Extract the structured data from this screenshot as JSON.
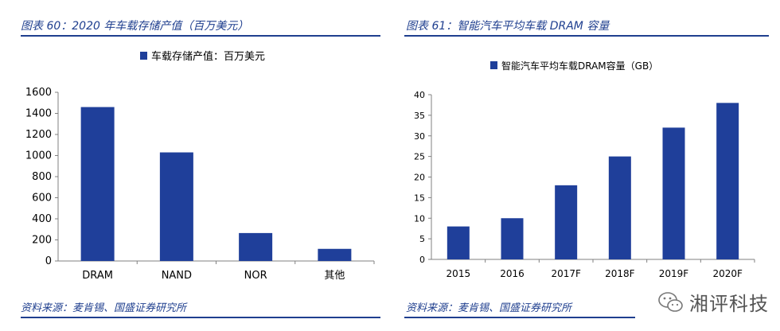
{
  "colors": {
    "bar": "#1f3f9a",
    "title": "#1f3f8f"
  },
  "left": {
    "title": "图表 60：2020 年车载存储产值（百万美元）",
    "source": "资料来源：麦肯锡、国盛证券研究所"
  },
  "right": {
    "title": "图表 61：智能汽车平均车载 DRAM 容量",
    "source": "资料来源：麦肯锡、国盛证券研究所"
  },
  "watermark": {
    "text": "湘评科技",
    "icon": "wechat-icon"
  },
  "chart_data": [
    {
      "type": "bar",
      "categories": [
        "DRAM",
        "NAND",
        "NOR",
        "其他"
      ],
      "series": [
        {
          "name": "车载存储产值：百万美元",
          "values": [
            1460,
            1030,
            265,
            115
          ]
        }
      ],
      "ylim": [
        0,
        1600
      ],
      "yticks": [
        0,
        200,
        400,
        600,
        800,
        1000,
        1200,
        1400,
        1600
      ],
      "legend": "top",
      "grid": false
    },
    {
      "type": "bar",
      "categories": [
        "2015",
        "2016",
        "2017F",
        "2018F",
        "2019F",
        "2020F"
      ],
      "series": [
        {
          "name": "智能汽车平均车载DRAM容量（GB）",
          "values": [
            8,
            10,
            18,
            25,
            32,
            38
          ]
        }
      ],
      "ylim": [
        0,
        40
      ],
      "yticks": [
        0,
        5,
        10,
        15,
        20,
        25,
        30,
        35,
        40
      ],
      "legend": "top",
      "grid": false
    }
  ]
}
